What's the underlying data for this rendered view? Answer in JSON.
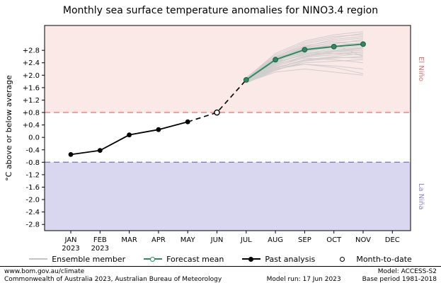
{
  "title": "Monthly sea surface temperature anomalies for NINO3.4 region",
  "chart_data": {
    "type": "line",
    "title": "Monthly sea surface temperature anomalies for NINO3.4 region",
    "ylabel": "°C above or below average",
    "ylim": [
      -3.0,
      3.6
    ],
    "ytick_labels": [
      "+2.8",
      "+2.4",
      "+2.0",
      "+1.6",
      "+1.2",
      "+0.8",
      "+0.4",
      "0.0",
      "-0.4",
      "-0.8",
      "-1.2",
      "-1.6",
      "-2.0",
      "-2.4",
      "-2.8"
    ],
    "months": [
      "JAN",
      "FEB",
      "MAR",
      "APR",
      "MAY",
      "JUN",
      "JUL",
      "AUG",
      "SEP",
      "OCT",
      "NOV",
      "DEC"
    ],
    "years": [
      "2023",
      "2023",
      "",
      "",
      "",
      "",
      "",
      "",
      "",
      "",
      "",
      ""
    ],
    "el_nino_threshold": 0.8,
    "la_nina_threshold": -0.8,
    "region_labels": {
      "el_nino": "El Niño",
      "la_nina": "La Niña"
    },
    "grid": false,
    "legend_position": "bottom",
    "series": [
      {
        "name": "Past analysis",
        "months": [
          "JAN",
          "FEB",
          "MAR",
          "APR",
          "MAY"
        ],
        "values": [
          -0.55,
          -0.42,
          0.08,
          0.25,
          0.5
        ]
      },
      {
        "name": "Month-to-date",
        "months": [
          "JUN"
        ],
        "values": [
          0.8
        ]
      },
      {
        "name": "Forecast mean",
        "months": [
          "JUL",
          "AUG",
          "SEP",
          "OCT",
          "NOV"
        ],
        "values": [
          1.85,
          2.5,
          2.82,
          2.92,
          3.0
        ]
      },
      {
        "name": "Ensemble member",
        "months": [
          "JUL",
          "AUG",
          "SEP",
          "OCT",
          "NOV"
        ],
        "ensemble": [
          [
            1.8,
            2.35,
            2.6,
            2.7,
            2.75
          ],
          [
            1.85,
            2.5,
            2.9,
            3.05,
            3.1
          ],
          [
            1.9,
            2.6,
            3.0,
            3.2,
            3.35
          ],
          [
            1.78,
            2.2,
            2.35,
            2.3,
            2.2
          ],
          [
            1.83,
            2.4,
            2.7,
            2.85,
            2.95
          ],
          [
            1.88,
            2.55,
            2.85,
            2.95,
            3.05
          ],
          [
            1.75,
            2.15,
            2.45,
            2.55,
            2.6
          ],
          [
            1.92,
            2.65,
            3.05,
            3.25,
            3.3
          ],
          [
            1.8,
            2.3,
            2.55,
            2.5,
            2.4
          ],
          [
            1.86,
            2.45,
            2.75,
            2.9,
            3.0
          ],
          [
            1.9,
            2.7,
            3.1,
            3.3,
            3.4
          ],
          [
            1.77,
            2.25,
            2.5,
            2.6,
            2.7
          ],
          [
            1.84,
            2.42,
            2.65,
            2.75,
            2.85
          ],
          [
            1.88,
            2.52,
            2.8,
            3.0,
            3.15
          ],
          [
            1.79,
            2.28,
            2.6,
            2.75,
            2.8
          ],
          [
            1.93,
            2.6,
            2.95,
            3.1,
            3.2
          ],
          [
            1.82,
            2.38,
            2.68,
            2.8,
            2.9
          ],
          [
            1.87,
            2.48,
            2.72,
            2.7,
            2.65
          ],
          [
            1.76,
            2.18,
            2.4,
            2.45,
            2.5
          ],
          [
            1.91,
            2.58,
            2.88,
            3.05,
            3.0
          ],
          [
            1.81,
            2.33,
            2.62,
            2.78,
            2.88
          ],
          [
            1.89,
            2.56,
            2.92,
            3.15,
            3.25
          ],
          [
            1.78,
            2.22,
            2.48,
            2.58,
            2.55
          ],
          [
            1.85,
            2.44,
            2.78,
            2.95,
            3.05
          ],
          [
            1.83,
            2.36,
            2.58,
            2.65,
            2.75
          ],
          [
            1.8,
            2.4,
            2.85,
            3.0,
            2.6
          ],
          [
            1.77,
            2.1,
            2.2,
            2.1,
            2.0
          ],
          [
            1.82,
            2.25,
            2.35,
            2.25,
            2.05
          ]
        ]
      }
    ],
    "colors": {
      "el_nino_region": "#fbe9e8",
      "la_nina_region": "#d9d6ef",
      "el_nino_line": "#e87272",
      "la_nina_line": "#7b7bc8",
      "el_nino_text": "#e06a6a",
      "la_nina_text": "#9080c8",
      "forecast": "#2e8b61",
      "forecast_edge": "#1d5c40",
      "past": "#000000",
      "ensemble": "#c4c4c4"
    }
  },
  "legend": {
    "items": [
      {
        "label": "Ensemble member"
      },
      {
        "label": "Forecast mean"
      },
      {
        "label": "Past analysis"
      },
      {
        "label": "Month-to-date"
      }
    ]
  },
  "footer": {
    "url": "www.bom.gov.au/climate",
    "copyright": "Commonwealth of Australia 2023, Australian Bureau of Meteorology",
    "model": "Model: ACCESS-S2",
    "model_run": "Model run: 17 Jun 2023",
    "base_period": "Base period 1981-2018"
  }
}
